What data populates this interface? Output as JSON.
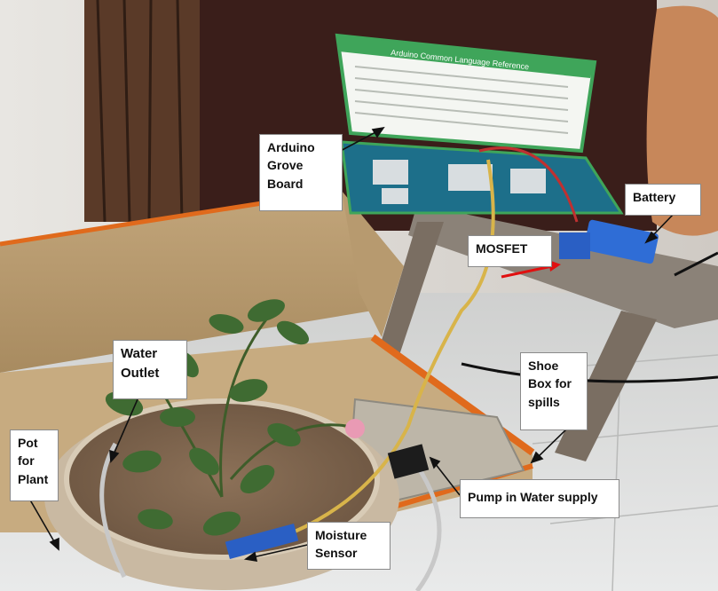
{
  "labels": {
    "arduino": [
      "Arduino",
      "Grove",
      "Board"
    ],
    "battery": [
      "Battery"
    ],
    "mosfet": [
      "MOSFET"
    ],
    "water_outlet": [
      "Water",
      "Outlet"
    ],
    "shoe_box": [
      "Shoe",
      "Box for",
      "spills"
    ],
    "pot": [
      "Pot",
      "for",
      "Plant"
    ],
    "pump": [
      "Pump in Water supply"
    ],
    "moisture": [
      "Moisture",
      "Sensor"
    ]
  },
  "kit_title": "Arduino Common Language Reference",
  "colors": {
    "arrow_black": "#111111",
    "arrow_red": "#e01010",
    "grove_board": "#1d6f8a",
    "kit_green": "#3fa55a",
    "cardboard": "#b89a6e"
  }
}
